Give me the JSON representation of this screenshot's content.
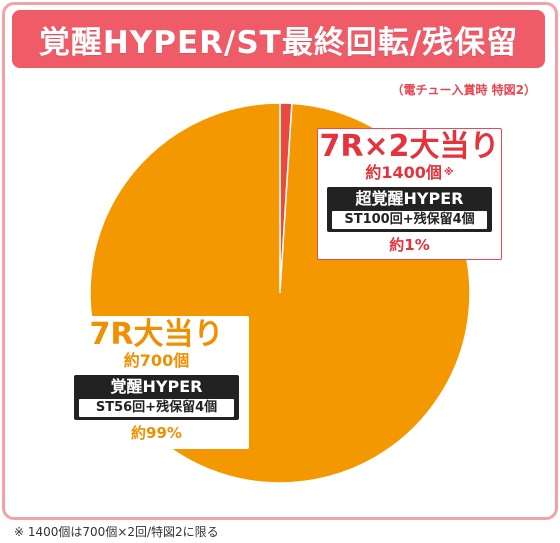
{
  "header": {
    "title": "覚醒HYPER/ST最終回転/残保留"
  },
  "condition": "（電チュー入賞時 特図2）",
  "callouts": {
    "small": {
      "title": "7R×2大当り",
      "balls": "約1400個",
      "balls_mark": "※",
      "mode": "超覚醒HYPER",
      "mode_detail": "ST100回+残保留4個",
      "percent": "約1%"
    },
    "big": {
      "title": "7R大当り",
      "balls": "約700個",
      "mode": "覚醒HYPER",
      "mode_detail": "ST56回+残保留4個",
      "percent": "約99%"
    }
  },
  "footnote": "※ 1400個は700個×2回/特図2に限る",
  "colors": {
    "title_bg": "#ef5b67",
    "frame": "#f3a3a8",
    "slice_major": "#f39800",
    "slice_minor": "#e94a3f"
  },
  "chart_data": {
    "type": "pie",
    "title": "覚醒HYPER/ST最終回転/残保留",
    "slices": [
      {
        "label": "7R×2大当り",
        "value": 1,
        "color": "#e94a3f"
      },
      {
        "label": "7R大当り",
        "value": 99,
        "color": "#f39800"
      }
    ]
  }
}
